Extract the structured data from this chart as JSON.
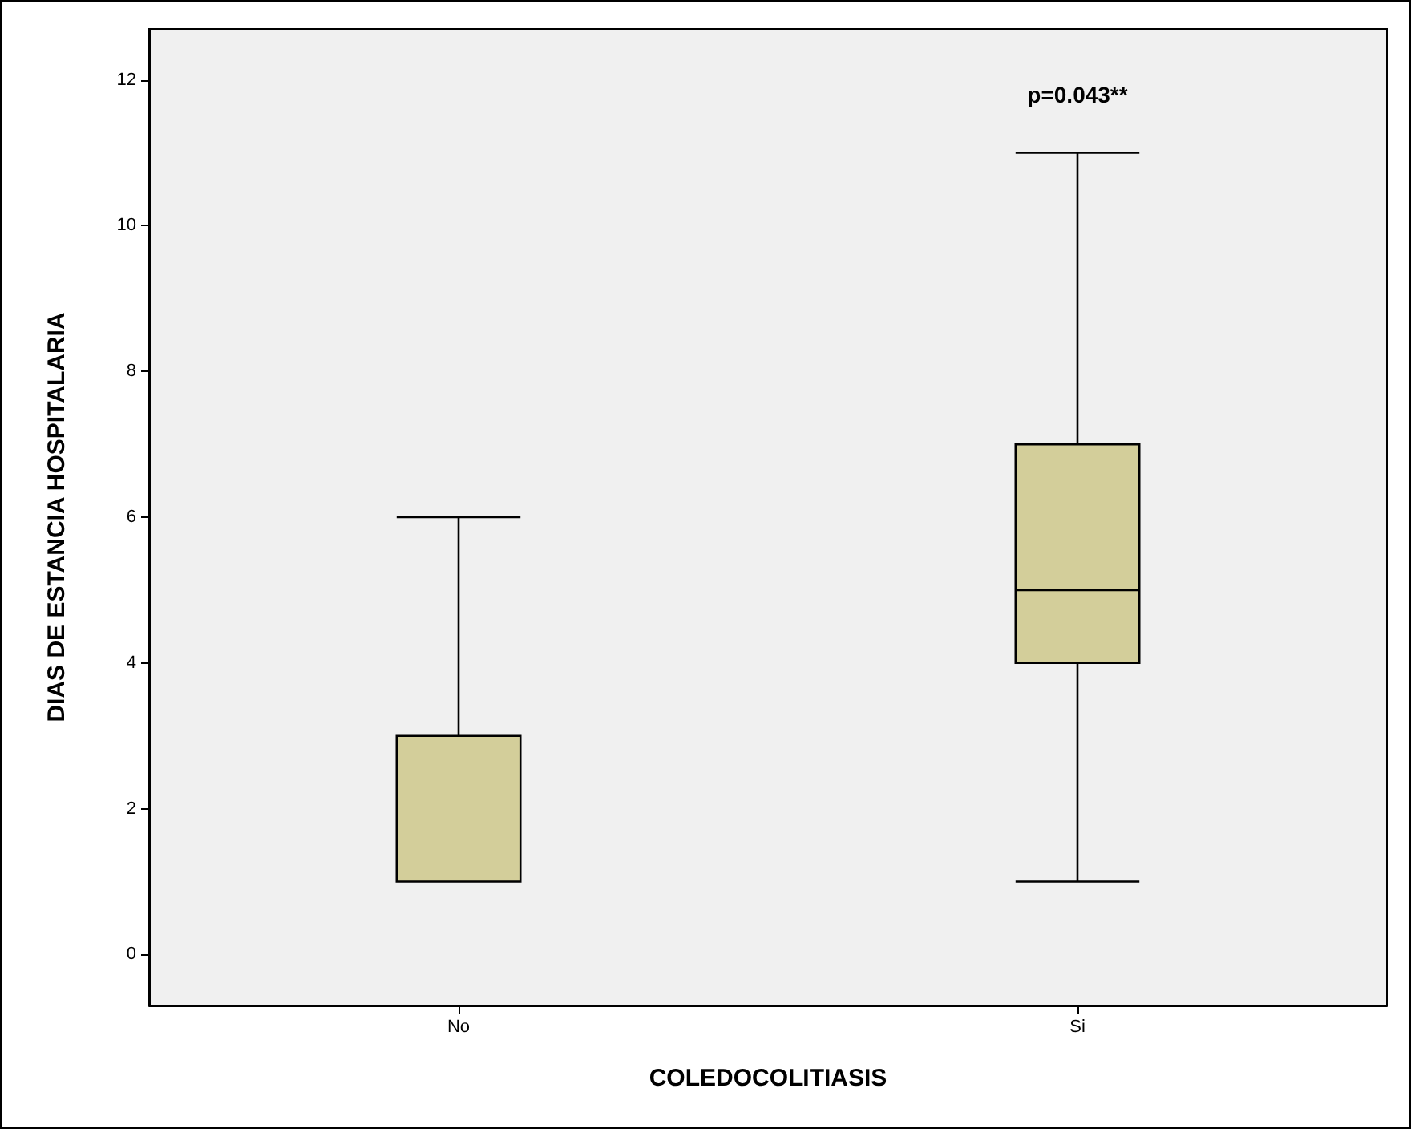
{
  "chart_data": {
    "type": "box",
    "xlabel": "COLEDOCOLITIASIS",
    "ylabel": "DIAS DE ESTANCIA HOSPITALARIA",
    "categories": [
      "No",
      "Si"
    ],
    "boxes": [
      {
        "low": 1,
        "q1": 1,
        "median": 3,
        "q3": 3,
        "high": 6
      },
      {
        "low": 1,
        "q1": 4,
        "median": 5,
        "q3": 7,
        "high": 11
      }
    ],
    "color": "#d3ce9a",
    "ylim": [
      -0.7,
      12.7
    ],
    "yticks": [
      0,
      2,
      4,
      6,
      8,
      10,
      12
    ],
    "grid": false,
    "annotations": [
      "p=0.043**"
    ]
  }
}
